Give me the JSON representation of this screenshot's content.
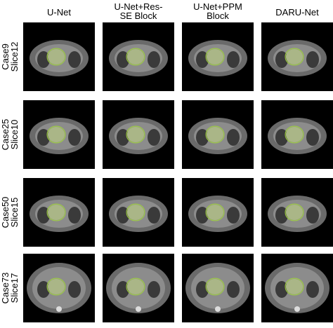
{
  "columns": [
    {
      "lines": [
        "U-Net"
      ]
    },
    {
      "lines": [
        "U-Net+Res-",
        "SE Block"
      ]
    },
    {
      "lines": [
        "U-Net+PPM",
        "Block"
      ]
    },
    {
      "lines": [
        "DARU-Net"
      ]
    }
  ],
  "rows": [
    {
      "lines": [
        "Case9",
        "Slice12"
      ]
    },
    {
      "lines": [
        "Case25",
        "Slice10"
      ]
    },
    {
      "lines": [
        "Case50",
        "Slice15"
      ]
    },
    {
      "lines": [
        "Case73",
        "Slice17"
      ]
    }
  ]
}
